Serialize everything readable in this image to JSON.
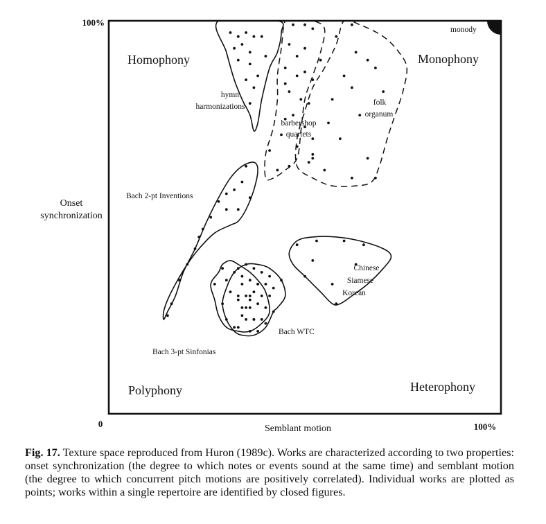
{
  "chart_data": {
    "type": "scatter",
    "title": "",
    "xlabel": "Semblant motion",
    "ylabel_lines": [
      "Onset",
      "synchronization"
    ],
    "xlim": [
      0,
      100
    ],
    "ylim": [
      0,
      100
    ],
    "ticks": {
      "origin": "0",
      "x_max": "100%",
      "y_max": "100%"
    },
    "grid": false,
    "corner_labels": [
      "Homophony",
      "Monophony",
      "Polyphony",
      "Heterophony"
    ],
    "corner_marker": "monody",
    "repertoires": [
      {
        "name": "hymn harmonizations",
        "label_lines": [
          "hymn",
          "harmonizations"
        ],
        "outline": "solid",
        "boundary": [
          [
            28,
            100
          ],
          [
            30,
            92
          ],
          [
            32,
            85
          ],
          [
            34,
            80
          ],
          [
            36,
            76
          ],
          [
            37,
            72
          ],
          [
            38,
            74
          ],
          [
            39,
            80
          ],
          [
            41,
            88
          ],
          [
            43,
            92
          ],
          [
            44,
            97
          ],
          [
            43,
            100
          ]
        ],
        "points": [
          [
            31,
            97
          ],
          [
            33,
            96
          ],
          [
            35,
            97
          ],
          [
            37,
            96
          ],
          [
            32,
            93
          ],
          [
            34,
            94
          ],
          [
            36,
            92
          ],
          [
            33,
            90
          ],
          [
            36,
            89
          ],
          [
            38,
            86
          ],
          [
            35,
            85
          ],
          [
            37,
            83
          ],
          [
            36,
            79
          ],
          [
            39,
            96
          ],
          [
            40,
            91
          ]
        ]
      },
      {
        "name": "barbershop quartets",
        "label_lines": [
          "barbershop",
          "quartets"
        ],
        "outline": "dashed",
        "boundary": [
          [
            45,
            100
          ],
          [
            48,
            100
          ],
          [
            52,
            100
          ],
          [
            55,
            98
          ],
          [
            54,
            92
          ],
          [
            52,
            86
          ],
          [
            50,
            80
          ],
          [
            49,
            72
          ],
          [
            48,
            65
          ],
          [
            45,
            62
          ],
          [
            42,
            60
          ],
          [
            40,
            60
          ],
          [
            40,
            66
          ],
          [
            42,
            73
          ],
          [
            43,
            80
          ],
          [
            43,
            86
          ],
          [
            44,
            93
          ]
        ],
        "points": [
          [
            47,
            99
          ],
          [
            50,
            99
          ],
          [
            52,
            98
          ],
          [
            46,
            94
          ],
          [
            48,
            91
          ],
          [
            50,
            93
          ],
          [
            45,
            88
          ],
          [
            48,
            86
          ],
          [
            50,
            87
          ],
          [
            52,
            85
          ],
          [
            46,
            82
          ],
          [
            49,
            80
          ],
          [
            51,
            79
          ],
          [
            47,
            76
          ],
          [
            50,
            73
          ],
          [
            52,
            70
          ],
          [
            48,
            68
          ],
          [
            51,
            64
          ],
          [
            46,
            63
          ],
          [
            43,
            62
          ],
          [
            41,
            67
          ],
          [
            44,
            71
          ],
          [
            45,
            75
          ],
          [
            45,
            84
          ],
          [
            52,
            66
          ]
        ]
      },
      {
        "name": "folk organum",
        "label_lines": [
          "folk",
          "organum"
        ],
        "outline": "dashed",
        "boundary": [
          [
            60,
            100
          ],
          [
            64,
            99
          ],
          [
            70,
            96
          ],
          [
            74,
            92
          ],
          [
            76,
            88
          ],
          [
            75,
            82
          ],
          [
            73,
            76
          ],
          [
            71,
            70
          ],
          [
            69,
            63
          ],
          [
            67,
            59
          ],
          [
            63,
            58
          ],
          [
            57,
            58
          ],
          [
            52,
            60
          ],
          [
            48,
            63
          ],
          [
            48,
            70
          ],
          [
            50,
            77
          ],
          [
            52,
            83
          ],
          [
            55,
            88
          ],
          [
            58,
            94
          ]
        ],
        "points": [
          [
            62,
            99
          ],
          [
            58,
            96
          ],
          [
            63,
            92
          ],
          [
            66,
            90
          ],
          [
            68,
            88
          ],
          [
            60,
            86
          ],
          [
            62,
            83
          ],
          [
            57,
            80
          ],
          [
            64,
            76
          ],
          [
            56,
            74
          ],
          [
            59,
            70
          ],
          [
            66,
            65
          ],
          [
            68,
            60
          ],
          [
            62,
            60
          ],
          [
            55,
            62
          ],
          [
            52,
            65
          ],
          [
            54,
            90
          ],
          [
            70,
            82
          ]
        ]
      },
      {
        "name": "Bach 2-pt Inventions",
        "label_lines": [
          "Bach 2-pt Inventions"
        ],
        "outline": "solid",
        "boundary": [
          [
            37,
            64
          ],
          [
            38,
            62
          ],
          [
            37,
            57
          ],
          [
            35,
            52
          ],
          [
            33,
            49
          ],
          [
            31,
            48
          ],
          [
            27,
            46
          ],
          [
            23,
            42
          ],
          [
            20,
            38
          ],
          [
            17,
            33
          ],
          [
            15,
            29
          ],
          [
            14,
            26
          ],
          [
            14,
            24
          ],
          [
            15,
            26
          ],
          [
            17,
            30
          ],
          [
            19,
            36
          ],
          [
            22,
            42
          ],
          [
            25,
            49
          ],
          [
            28,
            55
          ],
          [
            31,
            60
          ],
          [
            34,
            63
          ]
        ],
        "points": [
          [
            35,
            63
          ],
          [
            34,
            59
          ],
          [
            32,
            57
          ],
          [
            30,
            56
          ],
          [
            28,
            54
          ],
          [
            26,
            50
          ],
          [
            24,
            47
          ],
          [
            22,
            42
          ],
          [
            20,
            38
          ],
          [
            18,
            34
          ],
          [
            16,
            28
          ],
          [
            15,
            25
          ],
          [
            23,
            45
          ],
          [
            33,
            52
          ],
          [
            36,
            55
          ],
          [
            30,
            52
          ]
        ]
      },
      {
        "name": "Bach 3-pt Sinfonias",
        "label_lines": [
          "Bach 3-pt Sinfonias"
        ],
        "outline": "solid",
        "boundary": [
          [
            28,
            36
          ],
          [
            29,
            38
          ],
          [
            31,
            39
          ],
          [
            33,
            38
          ],
          [
            36,
            36
          ],
          [
            38,
            34
          ],
          [
            40,
            31
          ],
          [
            41,
            26
          ],
          [
            39,
            23
          ],
          [
            36,
            21
          ],
          [
            33,
            21
          ],
          [
            30,
            22
          ],
          [
            28,
            25
          ],
          [
            27,
            29
          ],
          [
            26,
            33
          ]
        ],
        "points": [
          [
            27,
            33
          ],
          [
            29,
            37
          ],
          [
            30,
            34
          ],
          [
            32,
            36
          ],
          [
            31,
            31
          ],
          [
            33,
            29
          ],
          [
            29,
            28
          ],
          [
            34,
            25
          ],
          [
            30,
            24
          ],
          [
            32,
            22
          ],
          [
            36,
            30
          ],
          [
            35,
            27
          ],
          [
            37,
            24
          ],
          [
            38,
            33
          ]
        ]
      },
      {
        "name": "Bach WTC",
        "label_lines": [
          "Bach WTC"
        ],
        "outline": "solid",
        "boundary": [
          [
            35,
            38
          ],
          [
            38,
            38
          ],
          [
            41,
            37
          ],
          [
            44,
            34
          ],
          [
            45,
            30
          ],
          [
            43,
            27
          ],
          [
            42,
            26
          ],
          [
            40,
            22
          ],
          [
            37,
            20
          ],
          [
            34,
            20
          ],
          [
            32,
            21
          ],
          [
            30,
            24
          ],
          [
            29,
            28
          ],
          [
            30,
            32
          ],
          [
            32,
            36
          ]
        ],
        "points": [
          [
            33,
            37
          ],
          [
            35,
            38
          ],
          [
            37,
            37
          ],
          [
            39,
            36
          ],
          [
            41,
            35
          ],
          [
            36,
            34
          ],
          [
            38,
            33
          ],
          [
            34,
            33
          ],
          [
            33,
            30
          ],
          [
            35,
            30
          ],
          [
            37,
            31
          ],
          [
            39,
            30
          ],
          [
            41,
            30
          ],
          [
            42,
            32
          ],
          [
            44,
            34
          ],
          [
            34,
            27
          ],
          [
            36,
            27
          ],
          [
            38,
            28
          ],
          [
            40,
            27
          ],
          [
            35,
            24
          ],
          [
            37,
            24
          ],
          [
            39,
            24
          ],
          [
            33,
            22
          ],
          [
            36,
            21
          ],
          [
            38,
            21
          ],
          [
            40,
            23
          ],
          [
            42,
            26
          ],
          [
            34,
            35
          ],
          [
            40,
            33
          ],
          [
            36,
            29
          ]
        ]
      },
      {
        "name": "Chinese, Siamese, Korean",
        "label_lines": [
          "Chinese",
          "Siamese",
          "Korean"
        ],
        "outline": "solid",
        "boundary": [
          [
            48,
            44
          ],
          [
            52,
            45
          ],
          [
            58,
            45
          ],
          [
            64,
            44
          ],
          [
            70,
            42
          ],
          [
            72,
            40
          ],
          [
            70,
            37
          ],
          [
            66,
            33
          ],
          [
            62,
            30
          ],
          [
            59,
            28
          ],
          [
            57,
            28
          ],
          [
            54,
            31
          ],
          [
            50,
            35
          ],
          [
            47,
            38
          ],
          [
            46,
            41
          ]
        ],
        "points": [
          [
            48,
            43
          ],
          [
            53,
            44
          ],
          [
            60,
            44
          ],
          [
            65,
            43
          ],
          [
            52,
            39
          ],
          [
            50,
            35
          ],
          [
            58,
            28
          ],
          [
            57,
            33
          ],
          [
            63,
            38
          ]
        ]
      }
    ]
  },
  "caption": {
    "label": "Fig. 17.",
    "text": " Texture space reproduced from Huron (1989c). Works are characterized according to two properties: onset synchronization (the degree to which notes or events sound at the same time) and semblant motion (the degree to which concurrent pitch motions are positively correlated). Individual works are plotted as points; works within a single repertoire are identified by closed figures."
  }
}
